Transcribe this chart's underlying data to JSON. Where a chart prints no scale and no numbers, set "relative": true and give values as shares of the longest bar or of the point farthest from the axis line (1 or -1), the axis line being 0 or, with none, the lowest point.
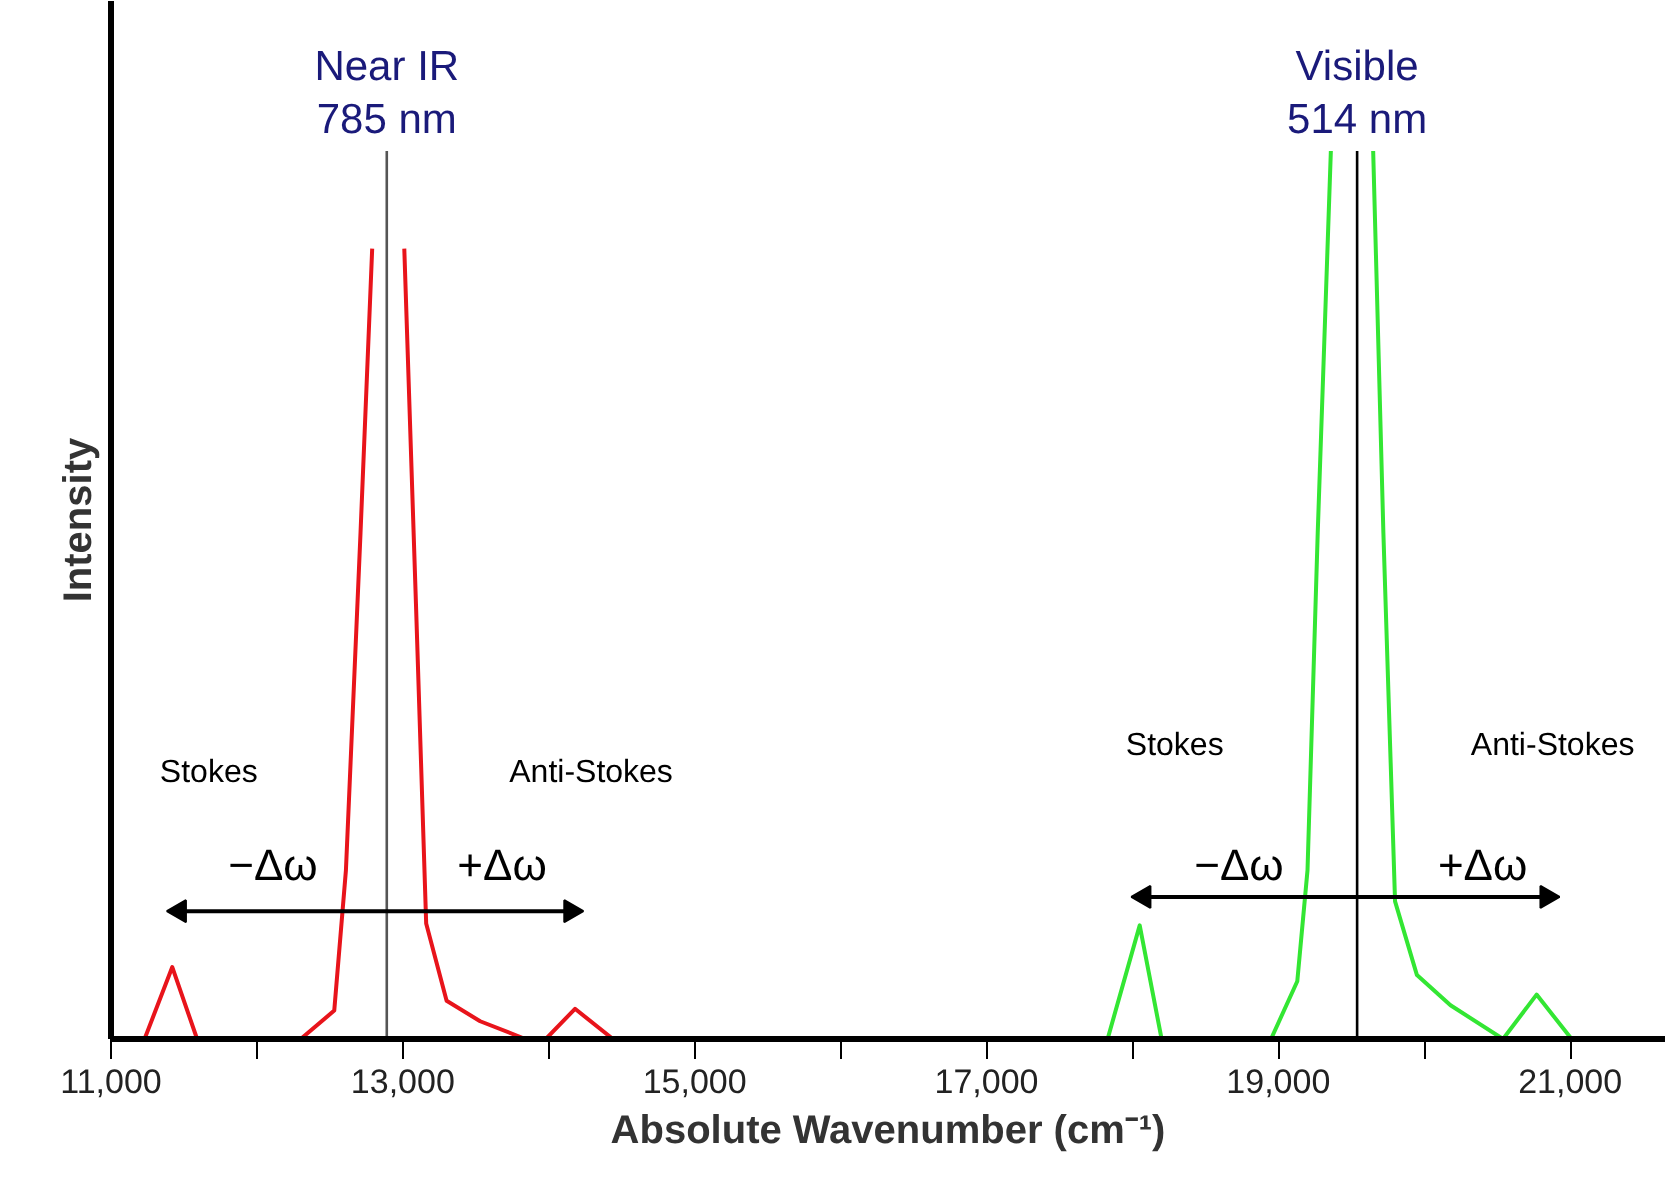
{
  "chart_data": {
    "type": "line",
    "relative": true,
    "xlabel": "Absolute Wavenumber (cm⁻¹)",
    "ylabel": "Intensity",
    "xlim": [
      11000,
      21650
    ],
    "xticks": [
      {
        "value": 11000,
        "label": "11,000"
      },
      {
        "value": 12000,
        "label": null
      },
      {
        "value": 13000,
        "label": "13,000"
      },
      {
        "value": 14000,
        "label": null
      },
      {
        "value": 15000,
        "label": "15,000"
      },
      {
        "value": 16000,
        "label": null
      },
      {
        "value": 17000,
        "label": "17,000"
      },
      {
        "value": 18000,
        "label": null
      },
      {
        "value": 19000,
        "label": "19,000"
      },
      {
        "value": 20000,
        "label": null
      },
      {
        "value": 21000,
        "label": "21,000"
      }
    ],
    "tick_labels": "x",
    "grid": false,
    "marker": "none",
    "line_style": "solid",
    "series": [
      {
        "color": "#e8141b",
        "x": [
          11230,
          11420,
          11590,
          12300,
          12530,
          12610,
          12710,
          12790,
          12890,
          13010,
          13090,
          13160,
          13300,
          13530,
          13840,
          13980,
          14180,
          14440,
          15000
        ],
        "values": [
          0,
          0.081,
          0,
          0,
          0.032,
          0.19,
          0.57,
          0.89,
          null,
          0.89,
          0.49,
          0.13,
          0.043,
          0.02,
          0,
          0,
          0.034,
          0,
          0
        ]
      },
      {
        "color": "#33e633",
        "x": [
          17830,
          18050,
          18200,
          18950,
          19130,
          19200,
          19270,
          19360,
          19540,
          19650,
          19720,
          19800,
          19950,
          20180,
          20540,
          20770,
          21010,
          21650
        ],
        "values": [
          0,
          0.128,
          0,
          0,
          0.065,
          0.19,
          0.57,
          1,
          null,
          1,
          0.57,
          0.155,
          0.072,
          0.038,
          0,
          0.05,
          0,
          0
        ]
      },
      {
        "type": "line",
        "color": "#000000",
        "marker": "triangle",
        "x": [
          11470,
          14150
        ],
        "values": [
          0.144,
          0.144
        ]
      },
      {
        "type": "line",
        "color": "#000000",
        "marker": "triangle",
        "x": [
          18080,
          20840
        ],
        "values": [
          0.16,
          0.16
        ]
      }
    ],
    "ref_lines": [
      {
        "axis": "x",
        "value": 12890,
        "label": "Near IR\n785 nm",
        "color": "#555555"
      },
      {
        "axis": "x",
        "value": 19540,
        "label": "Visible\n514 nm",
        "color": "#000000"
      }
    ],
    "annotations": [
      "Stokes",
      "Anti-Stokes",
      "−Δω",
      "+Δω",
      "Stokes",
      "Anti-Stokes",
      "−Δω",
      "+Δω"
    ]
  }
}
